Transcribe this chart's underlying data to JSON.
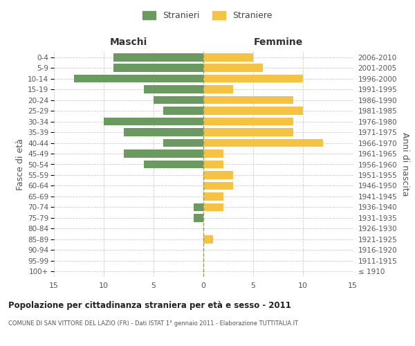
{
  "age_groups": [
    "100+",
    "95-99",
    "90-94",
    "85-89",
    "80-84",
    "75-79",
    "70-74",
    "65-69",
    "60-64",
    "55-59",
    "50-54",
    "45-49",
    "40-44",
    "35-39",
    "30-34",
    "25-29",
    "20-24",
    "15-19",
    "10-14",
    "5-9",
    "0-4"
  ],
  "birth_years": [
    "≤ 1910",
    "1911-1915",
    "1916-1920",
    "1921-1925",
    "1926-1930",
    "1931-1935",
    "1936-1940",
    "1941-1945",
    "1946-1950",
    "1951-1955",
    "1956-1960",
    "1961-1965",
    "1966-1970",
    "1971-1975",
    "1976-1980",
    "1981-1985",
    "1986-1990",
    "1991-1995",
    "1996-2000",
    "2001-2005",
    "2006-2010"
  ],
  "males": [
    0,
    0,
    0,
    0,
    0,
    1,
    1,
    0,
    0,
    0,
    6,
    8,
    4,
    8,
    10,
    4,
    5,
    6,
    13,
    9,
    9
  ],
  "females": [
    0,
    0,
    0,
    1,
    0,
    0,
    2,
    2,
    3,
    3,
    2,
    2,
    12,
    9,
    9,
    10,
    9,
    3,
    10,
    6,
    5
  ],
  "male_color": "#6a9a5f",
  "female_color": "#f5c242",
  "grid_color": "#cccccc",
  "center_line_color": "#999966",
  "title": "Popolazione per cittadinanza straniera per età e sesso - 2011",
  "subtitle": "COMUNE DI SAN VITTORE DEL LAZIO (FR) - Dati ISTAT 1° gennaio 2011 - Elaborazione TUTTITALIA.IT",
  "label_maschi": "Maschi",
  "label_femmine": "Femmine",
  "ylabel_left": "Fasce di età",
  "ylabel_right": "Anni di nascita",
  "legend_male": "Stranieri",
  "legend_female": "Straniere",
  "xlim": 15,
  "xticks": [
    -15,
    -10,
    -5,
    0,
    5,
    10,
    15
  ],
  "xtick_labels": [
    "15",
    "10",
    "5",
    "0",
    "5",
    "10",
    "15"
  ]
}
